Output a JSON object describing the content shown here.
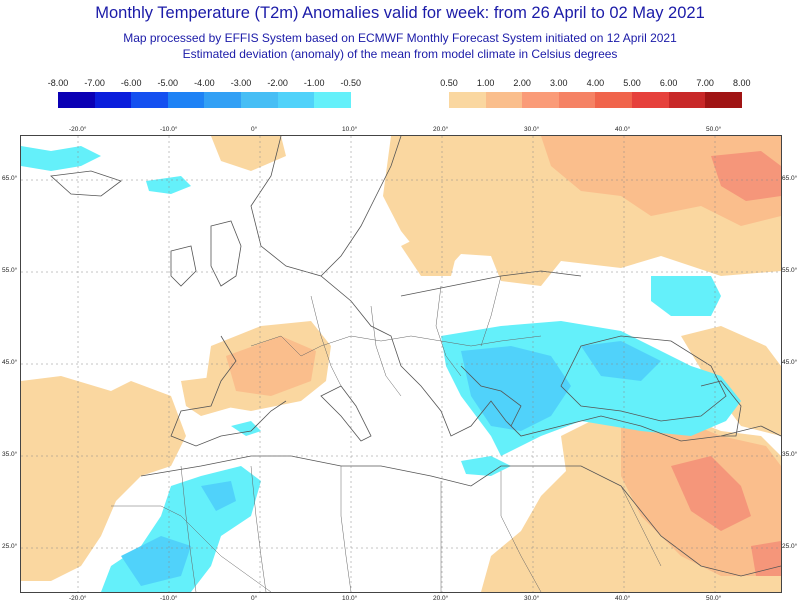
{
  "header": {
    "title": "Monthly Temperature (T2m) Anomalies valid for week: from 26 April to 02 May 2021",
    "subtitle1": "Map processed by EFFIS System based on ECMWF Monthly Forecast System initiated on 12 April 2021",
    "subtitle2": "Estimated deviation (anomaly) of the mean from model climate in Celsius degrees"
  },
  "legend_cold": {
    "labels": [
      "-8.00",
      "-7.00",
      "-6.00",
      "-5.00",
      "-4.00",
      "-3.00",
      "-2.00",
      "-1.00",
      "-0.50"
    ],
    "colors": [
      "#0a00b4",
      "#0a1edc",
      "#1450f0",
      "#1e82f5",
      "#32a0f5",
      "#46bef5",
      "#50d2fa",
      "#64f0fa"
    ]
  },
  "legend_warm": {
    "labels": [
      "0.50",
      "1.00",
      "2.00",
      "3.00",
      "4.00",
      "5.00",
      "6.00",
      "7.00",
      "8.00"
    ],
    "colors": [
      "#fad7a0",
      "#fabe8c",
      "#fa9b78",
      "#f58264",
      "#f0644b",
      "#e6413c",
      "#c82828",
      "#a01414"
    ]
  },
  "axes": {
    "lon_labels": [
      "-20.0°",
      "-10.0°",
      "0°",
      "10.0°",
      "20.0°",
      "30.0°",
      "40.0°",
      "50.0°"
    ],
    "lat_labels": [
      "65.0°",
      "55.0°",
      "45.0°",
      "35.0°",
      "25.0°"
    ]
  },
  "map": {
    "colors": {
      "sea": "#ffffff",
      "coast": "#555555",
      "warm_light": "#fad7a0",
      "warm_mid": "#fabe8c",
      "warm_strong": "#f5967a",
      "cold_light": "#64f0fa",
      "cold_mid": "#50d2fa",
      "cold_strong": "#46bef5"
    }
  }
}
